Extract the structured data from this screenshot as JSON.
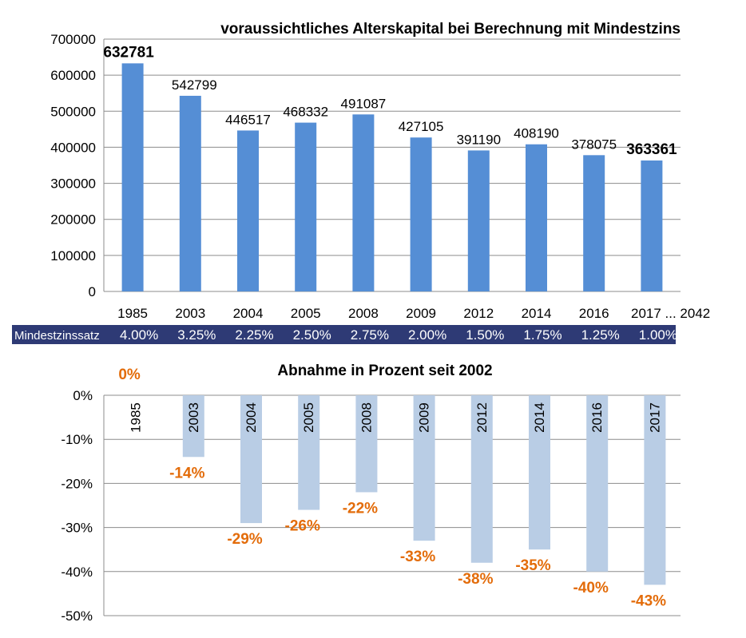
{
  "chart_data": [
    {
      "type": "bar",
      "title": "voraussichtliches Alterskapital bei Berechnung mit Mindestzins",
      "categories": [
        "1985",
        "2003",
        "2004",
        "2005",
        "2008",
        "2009",
        "2012",
        "2014",
        "2016",
        "2017 ... 2042"
      ],
      "values": [
        632781,
        542799,
        446517,
        468332,
        491087,
        427105,
        391190,
        408190,
        378075,
        363361
      ],
      "data_labels": [
        "632781",
        "542799",
        "446517",
        "468332",
        "491087",
        "427105",
        "391190",
        "408190",
        "378075",
        "363361"
      ],
      "bold_labels": [
        true,
        false,
        false,
        false,
        false,
        false,
        false,
        false,
        false,
        true
      ],
      "ylim": [
        0,
        700000
      ],
      "yticks": [
        0,
        100000,
        200000,
        300000,
        400000,
        500000,
        600000,
        700000
      ],
      "ytick_labels": [
        "0",
        "100000",
        "200000",
        "300000",
        "400000",
        "500000",
        "600000",
        "700000"
      ],
      "grid": true,
      "bar_color": "#558ed5"
    },
    {
      "type": "bar",
      "title": "Abnahme in Prozent seit 2002",
      "categories": [
        "1985",
        "2003",
        "2004",
        "2005",
        "2008",
        "2009",
        "2012",
        "2014",
        "2016",
        "2017"
      ],
      "values": [
        0,
        -14,
        -29,
        -26,
        -22,
        -33,
        -38,
        -35,
        -40,
        -43
      ],
      "data_labels": [
        "0%",
        "-14%",
        "-29%",
        "-26%",
        "-22%",
        "-33%",
        "-38%",
        "-35%",
        "-40%",
        "-43%"
      ],
      "ylim": [
        -50,
        0
      ],
      "yticks": [
        0,
        -10,
        -20,
        -30,
        -40,
        -50
      ],
      "ytick_labels": [
        "0%",
        "-10%",
        "-20%",
        "-30%",
        "-40%",
        "-50%"
      ],
      "grid": true,
      "bar_color": "#b9cde5",
      "label_color": "#e36c0a"
    }
  ],
  "rate_band": {
    "label": "Mindestzinssatz",
    "values": [
      "4.00%",
      "3.25%",
      "2.25%",
      "2.50%",
      "2.75%",
      "2.00%",
      "1.50%",
      "1.75%",
      "1.25%",
      "1.00%"
    ],
    "background": "#2e3a75"
  }
}
